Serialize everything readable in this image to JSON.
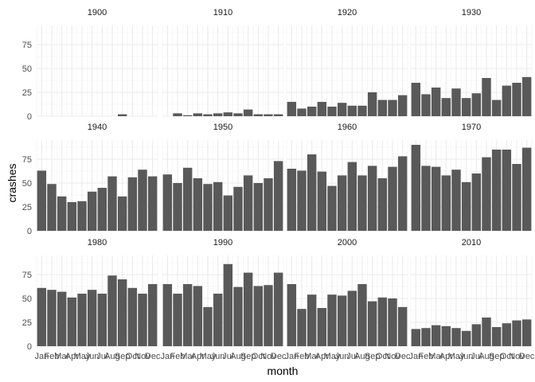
{
  "chart_data": {
    "type": "bar",
    "xlabel": "month",
    "ylabel": "crashes",
    "ylim": [
      0,
      95
    ],
    "yticks": [
      0,
      25,
      50,
      75
    ],
    "categories": [
      "Jan",
      "Feb",
      "Mar",
      "Apr",
      "May",
      "Jun",
      "Jul",
      "Aug",
      "Sep",
      "Oct",
      "Nov",
      "Dec"
    ],
    "bar_color": "#595959",
    "grid": true,
    "panels": [
      {
        "label": "1900",
        "values": [
          0,
          0,
          0,
          0,
          0,
          0,
          0,
          0,
          2,
          0,
          0,
          0
        ]
      },
      {
        "label": "1910",
        "values": [
          0,
          3,
          1,
          3,
          2,
          3,
          4,
          3,
          7,
          2,
          2,
          2
        ]
      },
      {
        "label": "1920",
        "values": [
          15,
          8,
          10,
          15,
          10,
          14,
          11,
          11,
          25,
          17,
          17,
          22
        ]
      },
      {
        "label": "1930",
        "values": [
          35,
          23,
          30,
          19,
          29,
          19,
          24,
          40,
          17,
          32,
          35,
          41
        ]
      },
      {
        "label": "1940",
        "values": [
          63,
          49,
          36,
          30,
          31,
          41,
          45,
          57,
          36,
          56,
          64,
          57
        ]
      },
      {
        "label": "1950",
        "values": [
          59,
          50,
          66,
          55,
          49,
          51,
          37,
          46,
          58,
          50,
          55,
          73
        ]
      },
      {
        "label": "1960",
        "values": [
          65,
          63,
          80,
          62,
          47,
          58,
          72,
          58,
          68,
          55,
          67,
          78
        ]
      },
      {
        "label": "1970",
        "values": [
          90,
          68,
          67,
          58,
          64,
          51,
          60,
          77,
          85,
          85,
          70,
          87
        ]
      },
      {
        "label": "1980",
        "values": [
          61,
          59,
          57,
          51,
          55,
          59,
          55,
          74,
          70,
          61,
          55,
          65
        ]
      },
      {
        "label": "1990",
        "values": [
          65,
          55,
          65,
          63,
          41,
          55,
          86,
          62,
          77,
          63,
          64,
          77
        ]
      },
      {
        "label": "2000",
        "values": [
          65,
          39,
          54,
          40,
          54,
          53,
          58,
          65,
          47,
          51,
          50,
          41
        ]
      },
      {
        "label": "2010",
        "values": [
          18,
          19,
          22,
          21,
          19,
          16,
          23,
          30,
          20,
          24,
          27,
          28
        ]
      }
    ]
  }
}
